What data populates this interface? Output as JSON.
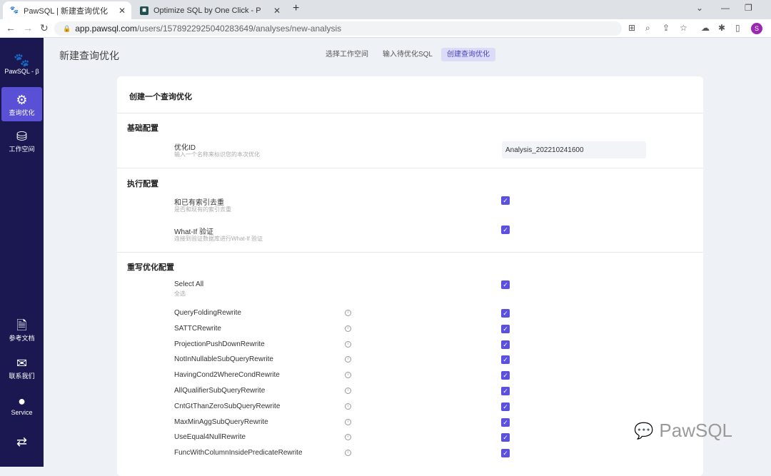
{
  "browser": {
    "tabs": [
      {
        "title": "PawSQL | 新建查询优化",
        "icon": "paw-icon"
      },
      {
        "title": "Optimize SQL by One Click - P",
        "icon": "app-icon"
      }
    ],
    "url_host": "app.pawsql.com",
    "url_path": "/users/1578922925040283649/analyses/new-analysis",
    "profile": "S"
  },
  "sidebar": {
    "logo": "PawSQL - β",
    "items": [
      {
        "label": "查询优化",
        "icon": "optimize-icon",
        "active": true
      },
      {
        "label": "工作空间",
        "icon": "database-icon"
      }
    ],
    "bottom": [
      {
        "label": "参考文档",
        "icon": "doc-icon"
      },
      {
        "label": "联系我们",
        "icon": "contact-icon"
      },
      {
        "label": "Service",
        "icon": "user-icon"
      },
      {
        "label": "",
        "icon": "translate-icon"
      }
    ]
  },
  "page": {
    "title": "新建查询优化",
    "steps": [
      "选择工作空间",
      "输入待优化SQL",
      "创建查询优化"
    ],
    "current_step": 2
  },
  "form": {
    "title": "创建一个查询优化",
    "basic": {
      "heading": "基础配置",
      "id_label": "优化ID",
      "id_hint": "输入一个名称来标识您的本次优化",
      "id_value": "Analysis_202210241600"
    },
    "exec": {
      "heading": "执行配置",
      "items": [
        {
          "label": "和已有索引去重",
          "hint": "是否和现有的索引去重",
          "checked": true
        },
        {
          "label": "What-If 验证",
          "hint": "连接到验证数据库进行What-If 验证",
          "checked": true
        }
      ]
    },
    "rewrite": {
      "heading": "重写优化配置",
      "select_all": {
        "label": "Select All",
        "hint": "全选",
        "checked": true
      },
      "rules": [
        "QueryFoldingRewrite",
        "SATTCRewrite",
        "ProjectionPushDownRewrite",
        "NotInNullableSubQueryRewrite",
        "HavingCond2WhereCondRewrite",
        "AllQualifierSubQueryRewrite",
        "CntGtThanZeroSubQueryRewrite",
        "MaxMinAggSubQueryRewrite",
        "UseEqual4NullRewrite",
        "FuncWithColumnInsidePredicateRewrite"
      ]
    }
  },
  "watermark": "PawSQL",
  "colors": {
    "sidebar": "#1b1851",
    "accent": "#5b50e0"
  }
}
